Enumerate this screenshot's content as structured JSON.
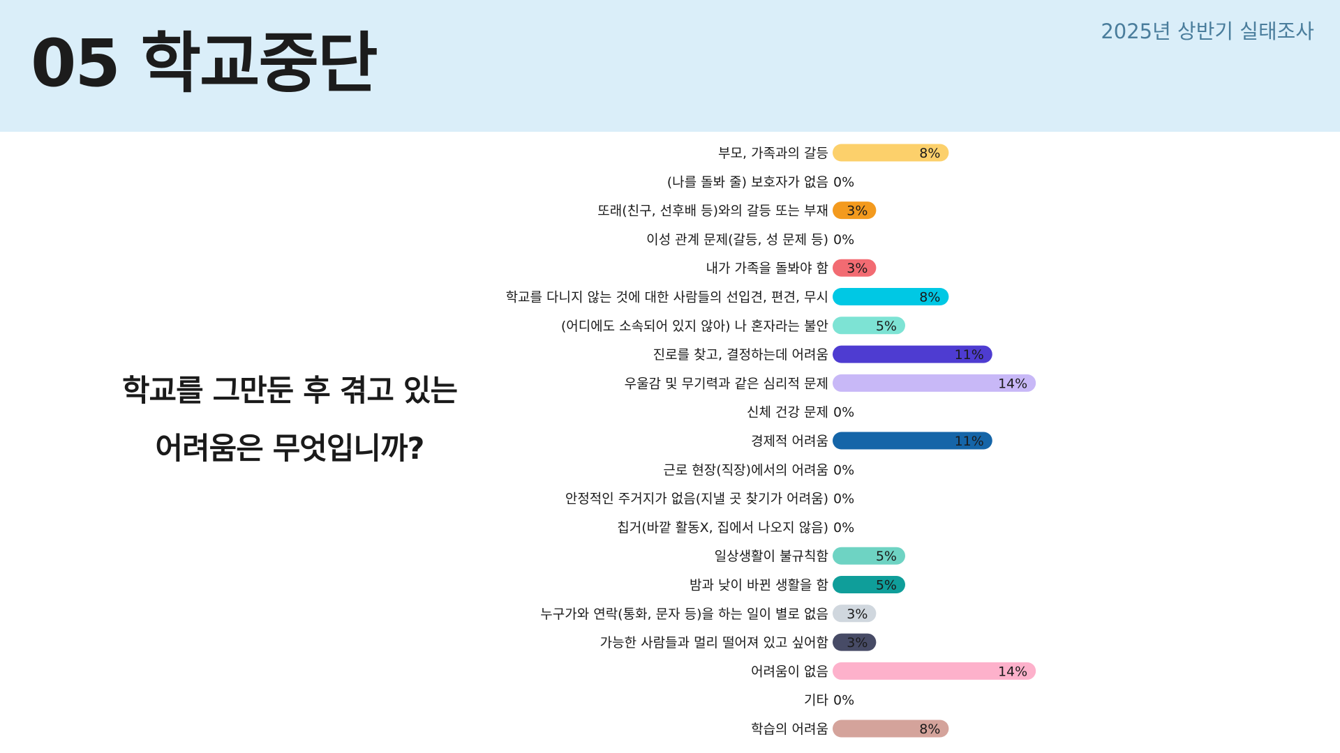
{
  "header": {
    "title": "05 학교중단",
    "survey": "2025년 상반기 실태조사"
  },
  "question": {
    "line1": "학교를 그만둔 후 겪고 있는",
    "line2": "어려움은 무엇입니까?"
  },
  "chart_data": {
    "type": "bar",
    "orientation": "horizontal",
    "unit": "%",
    "categories": [
      "부모, 가족과의 갈등",
      "(나를 돌봐 줄) 보호자가 없음",
      "또래(친구, 선후배 등)와의 갈등 또는 부재",
      "이성 관계 문제(갈등, 성 문제 등)",
      "내가 가족을 돌봐야 함",
      "학교를 다니지 않는 것에 대한 사람들의 선입견, 편견, 무시",
      "(어디에도 소속되어 있지 않아) 나 혼자라는 불안",
      "진로를 찾고, 결정하는데 어려움",
      "우울감 및 무기력과 같은 심리적 문제",
      "신체 건강 문제",
      "경제적 어려움",
      "근로 현장(직장)에서의 어려움",
      "안정적인 주거지가 없음(지낼 곳 찾기가 어려움)",
      "칩거(바깥 활동X, 집에서 나오지 않음)",
      "일상생활이 불규칙함",
      "밤과 낮이 바뀐 생활을 함",
      "누구가와 연락(통화, 문자 등)을 하는 일이 별로 없음",
      "가능한 사람들과 멀리 떨어져 있고 싶어함",
      "어려움이 없음",
      "기타",
      "학습의 어려움"
    ],
    "values": [
      8,
      0,
      3,
      0,
      3,
      8,
      5,
      11,
      14,
      0,
      11,
      0,
      0,
      0,
      5,
      5,
      3,
      3,
      14,
      0,
      8
    ],
    "value_labels": [
      "8%",
      "0%",
      "3%",
      "0%",
      "3%",
      "8%",
      "5%",
      "11%",
      "14%",
      "0%",
      "11%",
      "0%",
      "0%",
      "0%",
      "5%",
      "5%",
      "3%",
      "3%",
      "14%",
      "0%",
      "8%"
    ],
    "colors": [
      "#fcd06b",
      "#cccccc",
      "#f39a1e",
      "#cccccc",
      "#f26b72",
      "#00c8e4",
      "#7de3d4",
      "#4e3cd1",
      "#c8b8f7",
      "#cccccc",
      "#1565a8",
      "#cccccc",
      "#cccccc",
      "#cccccc",
      "#6ed3c3",
      "#0f9e9a",
      "#d0d7de",
      "#474b66",
      "#fdb1cb",
      "#cccccc",
      "#d4a39b"
    ]
  }
}
